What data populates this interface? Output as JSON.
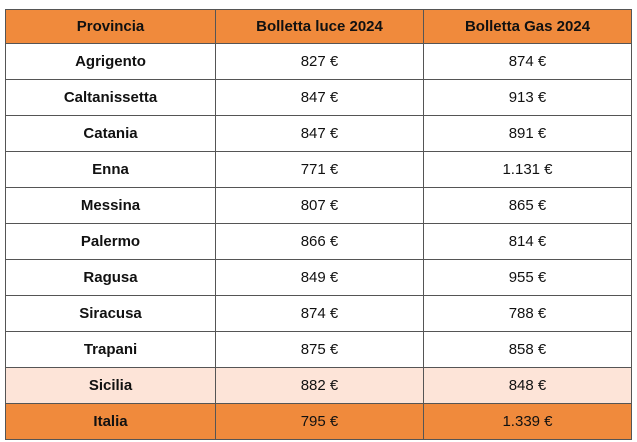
{
  "table": {
    "headers": [
      "Provincia",
      "Bolletta luce 2024",
      "Bolletta Gas 2024"
    ],
    "rows": [
      {
        "provincia": "Agrigento",
        "luce": "827 €",
        "gas": "874 €"
      },
      {
        "provincia": "Caltanissetta",
        "luce": "847 €",
        "gas": "913 €"
      },
      {
        "provincia": "Catania",
        "luce": "847 €",
        "gas": "891 €"
      },
      {
        "provincia": "Enna",
        "luce": "771 €",
        "gas": "1.131 €"
      },
      {
        "provincia": "Messina",
        "luce": "807 €",
        "gas": "865 €"
      },
      {
        "provincia": "Palermo",
        "luce": "866 €",
        "gas": "814 €"
      },
      {
        "provincia": "Ragusa",
        "luce": "849 €",
        "gas": "955 €"
      },
      {
        "provincia": "Siracusa",
        "luce": "874 €",
        "gas": "788 €"
      },
      {
        "provincia": "Trapani",
        "luce": "875 €",
        "gas": "858 €"
      },
      {
        "provincia": "Sicilia",
        "luce": "882 €",
        "gas": "848 €"
      },
      {
        "provincia": "Italia",
        "luce": "795 €",
        "gas": "1.339 €"
      }
    ]
  },
  "colors": {
    "header_bg": "#f08a3c",
    "region_bg": "#fde4d8",
    "national_bg": "#f08a3c",
    "border": "#555555"
  }
}
